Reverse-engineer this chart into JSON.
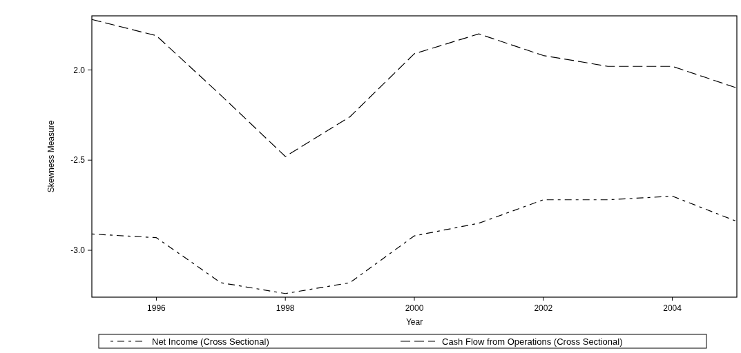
{
  "chart_data": {
    "type": "line",
    "xlabel": "Year",
    "ylabel": "Skewness Measure",
    "x": [
      1995,
      1996,
      1997,
      1998,
      1999,
      2000,
      2001,
      2002,
      2003,
      2004,
      2005
    ],
    "series": [
      {
        "name": "Net Income (Cross Sectional)",
        "color": "#000000",
        "values": [
          -2.91,
          -2.93,
          -3.18,
          -3.24,
          -3.18,
          -2.92,
          -2.85,
          -2.72,
          -2.72,
          -2.7,
          -2.84
        ]
      },
      {
        "name": "Cash Flow from Operations (Cross Sectional)",
        "color": "#000000",
        "values": [
          -1.72,
          -1.81,
          -2.14,
          -2.48,
          -2.26,
          -1.91,
          -1.8,
          -1.92,
          -1.98,
          -1.98,
          -2.1
        ]
      }
    ],
    "xlim": [
      1995,
      2005
    ],
    "xticks": [
      1996,
      1998,
      2000,
      2002,
      2004
    ],
    "ylim": [
      -3.26,
      -1.7
    ],
    "yticks": [
      {
        "value": -2.0,
        "label": "2.0"
      },
      {
        "value": -2.5,
        "label": "-2.5"
      },
      {
        "value": -3.0,
        "label": "-3.0"
      }
    ],
    "grid": false,
    "legend": "bottom",
    "line_style": "dashed"
  }
}
